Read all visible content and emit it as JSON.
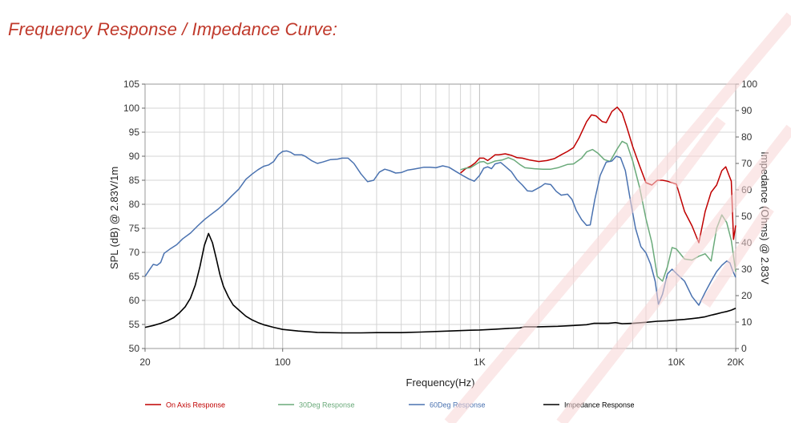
{
  "page": {
    "heading": "Frequency Response / Impedance Curve:"
  },
  "colors": {
    "heading": "#c0392b",
    "on_axis": "#c00000",
    "deg30": "#6aaa7a",
    "deg60": "#4a72b0",
    "impedance": "#000000",
    "grid": "#d4d4d4",
    "axis": "#666666",
    "watermark": "#f7d5d5"
  },
  "chart_data": {
    "type": "line",
    "x_scale": "log",
    "xlabel": "Frequency(Hz)",
    "ylabel": "SPL (dB) @ 2.83V/1m",
    "y2label": "Impedance (Ohms) @ 2.83V",
    "xlim": [
      20,
      20000
    ],
    "ylim": [
      50,
      105
    ],
    "y2lim": [
      0,
      100
    ],
    "grid": true,
    "legend_position": "bottom",
    "x_ticks": [
      {
        "value": 20,
        "label": "20"
      },
      {
        "value": 100,
        "label": "100"
      },
      {
        "value": 1000,
        "label": "1K"
      },
      {
        "value": 10000,
        "label": "10K"
      },
      {
        "value": 20000,
        "label": "20K"
      }
    ],
    "y_ticks": [
      "50",
      "55",
      "60",
      "65",
      "70",
      "75",
      "80",
      "85",
      "90",
      "95",
      "100",
      "105"
    ],
    "y2_ticks": [
      "0",
      "10",
      "20",
      "30",
      "40",
      "50",
      "60",
      "70",
      "80",
      "90",
      "100"
    ],
    "series": [
      {
        "name": "On Axis Response",
        "axis": "left",
        "color": "#c00000",
        "points": [
          [
            800,
            86.5
          ],
          [
            850,
            87.4
          ],
          [
            900,
            87.9
          ],
          [
            950,
            88.6
          ],
          [
            1000,
            89.6
          ],
          [
            1050,
            89.6
          ],
          [
            1100,
            89.1
          ],
          [
            1150,
            89.7
          ],
          [
            1200,
            90.3
          ],
          [
            1250,
            90.3
          ],
          [
            1350,
            90.5
          ],
          [
            1450,
            90.2
          ],
          [
            1550,
            89.7
          ],
          [
            1650,
            89.6
          ],
          [
            1800,
            89.2
          ],
          [
            2000,
            88.9
          ],
          [
            2200,
            89.1
          ],
          [
            2400,
            89.5
          ],
          [
            2600,
            90.3
          ],
          [
            2800,
            91.0
          ],
          [
            3000,
            91.8
          ],
          [
            3200,
            93.8
          ],
          [
            3500,
            97.2
          ],
          [
            3700,
            98.6
          ],
          [
            3900,
            98.4
          ],
          [
            4200,
            97.2
          ],
          [
            4400,
            97.0
          ],
          [
            4700,
            99.3
          ],
          [
            5000,
            100.2
          ],
          [
            5300,
            99.0
          ],
          [
            5600,
            96.0
          ],
          [
            6000,
            92.0
          ],
          [
            6500,
            88.0
          ],
          [
            7000,
            84.5
          ],
          [
            7500,
            84.0
          ],
          [
            8000,
            85.0
          ],
          [
            8500,
            85.0
          ],
          [
            9000,
            84.8
          ],
          [
            10000,
            84.2
          ],
          [
            11000,
            78.5
          ],
          [
            12000,
            75.5
          ],
          [
            13000,
            72.0
          ],
          [
            14000,
            78.5
          ],
          [
            15000,
            82.5
          ],
          [
            16000,
            84.0
          ],
          [
            17000,
            87.0
          ],
          [
            17800,
            87.8
          ],
          [
            18500,
            86.0
          ],
          [
            19000,
            84.8
          ],
          [
            19500,
            72.7
          ],
          [
            20000,
            75.6
          ]
        ]
      },
      {
        "name": "30Deg Response",
        "axis": "left",
        "color": "#6aaa7a",
        "points": [
          [
            800,
            87.2
          ],
          [
            850,
            87.5
          ],
          [
            900,
            87.6
          ],
          [
            950,
            88.2
          ],
          [
            1000,
            88.8
          ],
          [
            1050,
            88.9
          ],
          [
            1100,
            88.4
          ],
          [
            1150,
            88.7
          ],
          [
            1200,
            89.0
          ],
          [
            1300,
            89.2
          ],
          [
            1400,
            89.7
          ],
          [
            1500,
            89.2
          ],
          [
            1600,
            88.3
          ],
          [
            1700,
            87.6
          ],
          [
            1900,
            87.4
          ],
          [
            2100,
            87.3
          ],
          [
            2300,
            87.3
          ],
          [
            2500,
            87.6
          ],
          [
            2800,
            88.3
          ],
          [
            3000,
            88.4
          ],
          [
            3300,
            89.6
          ],
          [
            3500,
            90.9
          ],
          [
            3750,
            91.4
          ],
          [
            4000,
            90.6
          ],
          [
            4300,
            89.3
          ],
          [
            4600,
            88.9
          ],
          [
            5000,
            91.5
          ],
          [
            5300,
            93.1
          ],
          [
            5600,
            92.6
          ],
          [
            6000,
            89.0
          ],
          [
            6500,
            83.5
          ],
          [
            7000,
            77.0
          ],
          [
            7500,
            72.0
          ],
          [
            8000,
            65.0
          ],
          [
            8500,
            64.0
          ],
          [
            9000,
            67.0
          ],
          [
            9500,
            71.0
          ],
          [
            10000,
            70.7
          ],
          [
            11000,
            68.6
          ],
          [
            12000,
            68.4
          ],
          [
            13000,
            69.2
          ],
          [
            14000,
            69.7
          ],
          [
            15000,
            68.2
          ],
          [
            16000,
            75.0
          ],
          [
            17000,
            77.8
          ],
          [
            18000,
            76.2
          ],
          [
            19000,
            72.5
          ],
          [
            20000,
            66.0
          ]
        ]
      },
      {
        "name": "60Deg Response",
        "axis": "left",
        "color": "#4a72b0",
        "points": [
          [
            20,
            65.0
          ],
          [
            21,
            66.3
          ],
          [
            22,
            67.5
          ],
          [
            23,
            67.3
          ],
          [
            24,
            67.9
          ],
          [
            25,
            69.8
          ],
          [
            27,
            70.8
          ],
          [
            29,
            71.6
          ],
          [
            31,
            72.8
          ],
          [
            34,
            74.0
          ],
          [
            37,
            75.5
          ],
          [
            40,
            76.8
          ],
          [
            43,
            77.8
          ],
          [
            47,
            79.0
          ],
          [
            51,
            80.3
          ],
          [
            55,
            81.7
          ],
          [
            60,
            83.2
          ],
          [
            65,
            85.2
          ],
          [
            70,
            86.3
          ],
          [
            75,
            87.2
          ],
          [
            80,
            87.9
          ],
          [
            85,
            88.2
          ],
          [
            90,
            88.9
          ],
          [
            95,
            90.3
          ],
          [
            100,
            91.0
          ],
          [
            105,
            91.1
          ],
          [
            110,
            90.8
          ],
          [
            115,
            90.3
          ],
          [
            125,
            90.3
          ],
          [
            130,
            90.0
          ],
          [
            140,
            89.1
          ],
          [
            150,
            88.5
          ],
          [
            160,
            88.8
          ],
          [
            175,
            89.3
          ],
          [
            190,
            89.4
          ],
          [
            200,
            89.6
          ],
          [
            215,
            89.6
          ],
          [
            230,
            88.5
          ],
          [
            250,
            86.3
          ],
          [
            270,
            84.7
          ],
          [
            290,
            85.0
          ],
          [
            310,
            86.7
          ],
          [
            330,
            87.3
          ],
          [
            350,
            87.0
          ],
          [
            375,
            86.5
          ],
          [
            400,
            86.6
          ],
          [
            430,
            87.1
          ],
          [
            460,
            87.3
          ],
          [
            490,
            87.5
          ],
          [
            520,
            87.7
          ],
          [
            560,
            87.7
          ],
          [
            600,
            87.6
          ],
          [
            650,
            88.0
          ],
          [
            700,
            87.7
          ],
          [
            760,
            86.8
          ],
          [
            820,
            86.0
          ],
          [
            880,
            85.3
          ],
          [
            940,
            84.8
          ],
          [
            1000,
            86.0
          ],
          [
            1050,
            87.5
          ],
          [
            1100,
            87.8
          ],
          [
            1150,
            87.4
          ],
          [
            1200,
            88.4
          ],
          [
            1280,
            88.7
          ],
          [
            1350,
            87.9
          ],
          [
            1450,
            86.8
          ],
          [
            1550,
            85.1
          ],
          [
            1650,
            84.0
          ],
          [
            1750,
            82.8
          ],
          [
            1850,
            82.7
          ],
          [
            1950,
            83.2
          ],
          [
            2050,
            83.7
          ],
          [
            2150,
            84.3
          ],
          [
            2300,
            84.1
          ],
          [
            2450,
            82.7
          ],
          [
            2600,
            81.9
          ],
          [
            2800,
            82.1
          ],
          [
            2950,
            81.0
          ],
          [
            3100,
            78.7
          ],
          [
            3300,
            76.8
          ],
          [
            3500,
            75.6
          ],
          [
            3650,
            75.7
          ],
          [
            3850,
            81.0
          ],
          [
            4100,
            86.0
          ],
          [
            4400,
            88.8
          ],
          [
            4700,
            89.0
          ],
          [
            4950,
            90.0
          ],
          [
            5200,
            89.7
          ],
          [
            5500,
            87.0
          ],
          [
            5800,
            81.5
          ],
          [
            6200,
            75.0
          ],
          [
            6600,
            71.2
          ],
          [
            7000,
            69.9
          ],
          [
            7400,
            67.5
          ],
          [
            7800,
            64.0
          ],
          [
            8100,
            59.2
          ],
          [
            8500,
            61.3
          ],
          [
            9000,
            65.5
          ],
          [
            9500,
            66.5
          ],
          [
            10000,
            65.6
          ],
          [
            11000,
            64.0
          ],
          [
            12000,
            60.8
          ],
          [
            13000,
            59.0
          ],
          [
            14000,
            61.7
          ],
          [
            15000,
            64.0
          ],
          [
            16000,
            66.0
          ],
          [
            17000,
            67.3
          ],
          [
            18000,
            68.2
          ],
          [
            18700,
            67.8
          ],
          [
            19300,
            66.2
          ],
          [
            20000,
            64.8
          ]
        ]
      },
      {
        "name": "Impedance Response",
        "axis": "right",
        "color": "#000000",
        "points": [
          [
            20,
            8.0
          ],
          [
            22,
            8.7
          ],
          [
            24,
            9.5
          ],
          [
            26,
            10.5
          ],
          [
            28,
            11.7
          ],
          [
            30,
            13.6
          ],
          [
            32,
            15.8
          ],
          [
            34,
            19.0
          ],
          [
            36,
            24.0
          ],
          [
            38,
            31.0
          ],
          [
            40,
            39.0
          ],
          [
            42,
            43.5
          ],
          [
            44,
            40.0
          ],
          [
            46,
            34.0
          ],
          [
            48,
            28.0
          ],
          [
            50,
            23.5
          ],
          [
            53,
            19.5
          ],
          [
            56,
            16.5
          ],
          [
            60,
            14.5
          ],
          [
            65,
            12.2
          ],
          [
            70,
            10.8
          ],
          [
            75,
            9.8
          ],
          [
            80,
            9.0
          ],
          [
            90,
            8.0
          ],
          [
            100,
            7.2
          ],
          [
            120,
            6.6
          ],
          [
            150,
            6.1
          ],
          [
            200,
            5.9
          ],
          [
            250,
            5.9
          ],
          [
            300,
            6.0
          ],
          [
            400,
            6.0
          ],
          [
            500,
            6.2
          ],
          [
            700,
            6.6
          ],
          [
            900,
            6.9
          ],
          [
            1000,
            7.0
          ],
          [
            1200,
            7.3
          ],
          [
            1400,
            7.6
          ],
          [
            1600,
            7.8
          ],
          [
            1700,
            8.2
          ],
          [
            2000,
            8.2
          ],
          [
            2500,
            8.4
          ],
          [
            3000,
            8.7
          ],
          [
            3500,
            9.0
          ],
          [
            3800,
            9.5
          ],
          [
            4200,
            9.5
          ],
          [
            4500,
            9.5
          ],
          [
            4900,
            9.8
          ],
          [
            5300,
            9.4
          ],
          [
            6000,
            9.5
          ],
          [
            7000,
            9.9
          ],
          [
            8000,
            10.3
          ],
          [
            9000,
            10.5
          ],
          [
            10000,
            10.8
          ],
          [
            11000,
            11.0
          ],
          [
            12000,
            11.3
          ],
          [
            13000,
            11.6
          ],
          [
            14000,
            12.0
          ],
          [
            15000,
            12.6
          ],
          [
            16000,
            13.1
          ],
          [
            17000,
            13.6
          ],
          [
            18000,
            14.0
          ],
          [
            19000,
            14.5
          ],
          [
            20000,
            15.2
          ]
        ]
      }
    ]
  }
}
